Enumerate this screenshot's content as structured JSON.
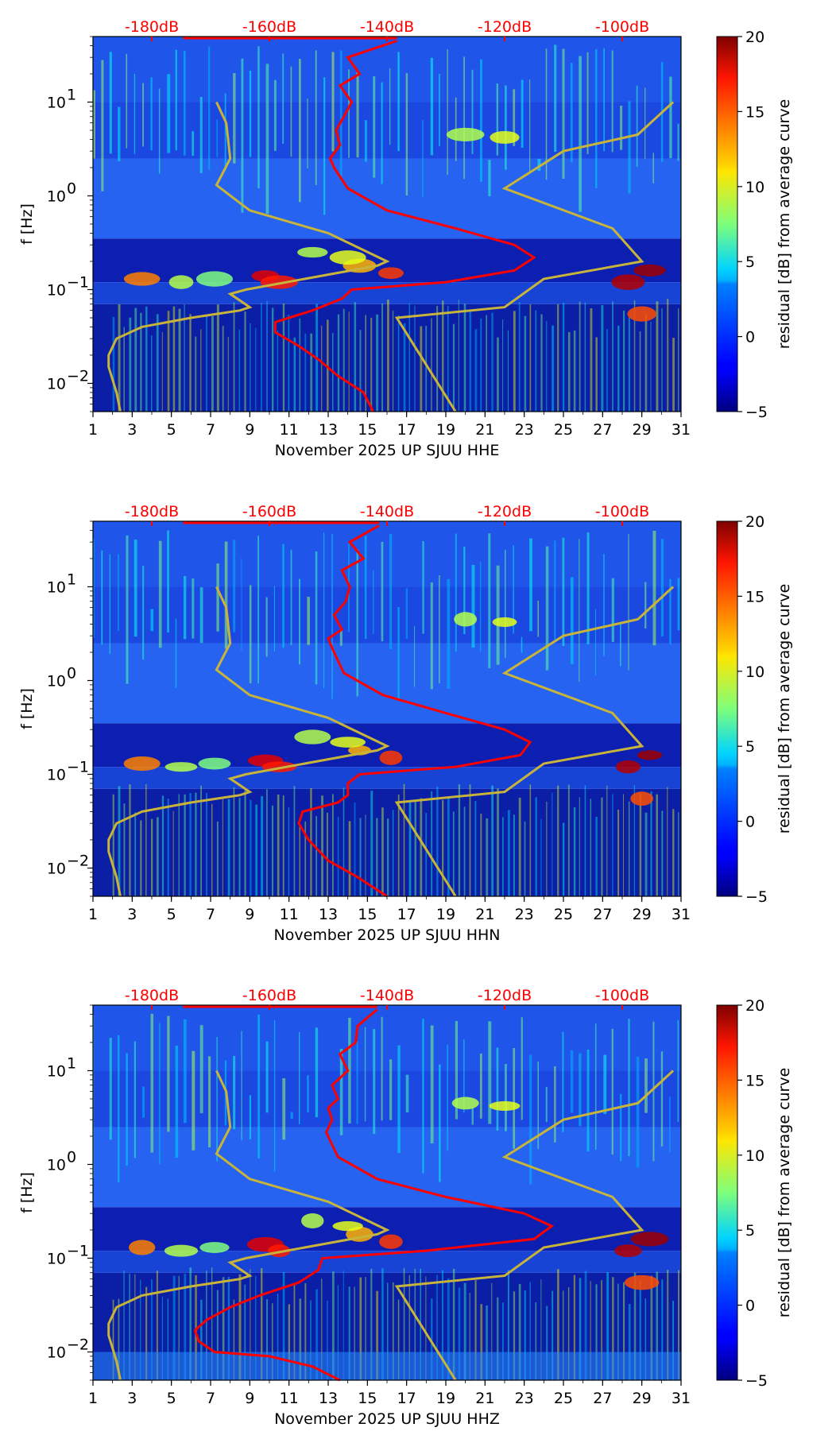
{
  "chart_data": [
    {
      "type": "heatmap",
      "title": "",
      "xlabel": "November 2025 UP SJUU  HHE",
      "ylabel": "f [Hz]",
      "xlim": [
        1,
        31
      ],
      "ylim": [
        0.005,
        50
      ],
      "yscale": "log",
      "x_ticks": [
        "1",
        "3",
        "5",
        "7",
        "9",
        "11",
        "13",
        "15",
        "17",
        "19",
        "21",
        "23",
        "25",
        "27",
        "29",
        "31"
      ],
      "y_ticks": [
        {
          "base": "10",
          "exp": "1",
          "value": 10
        },
        {
          "base": "10",
          "exp": "0",
          "value": 1
        },
        {
          "base": "10",
          "exp": "−1",
          "value": 0.1
        },
        {
          "base": "10",
          "exp": "−2",
          "value": 0.01
        }
      ],
      "top_axis_labels": [
        "-180dB",
        "-160dB",
        "-140dB",
        "-120dB",
        "-100dB"
      ],
      "top_axis_days": [
        4,
        10,
        16,
        22,
        28
      ],
      "colorbar": {
        "label": "residual [dB] from average curve",
        "range": [
          -5,
          20
        ],
        "ticks": [
          "20",
          "15",
          "10",
          "5",
          "0",
          "−5"
        ],
        "colormap": "jet"
      },
      "series": [
        {
          "name": "PSD average (red)",
          "color": "#ff0000",
          "points": [
            [
              15.3,
              0.005
            ],
            [
              14.8,
              0.008
            ],
            [
              13.5,
              0.012
            ],
            [
              12.5,
              0.018
            ],
            [
              11.5,
              0.025
            ],
            [
              10.3,
              0.035
            ],
            [
              10.3,
              0.045
            ],
            [
              12.2,
              0.06
            ],
            [
              13.7,
              0.08
            ],
            [
              14.2,
              0.1
            ],
            [
              19.0,
              0.12
            ],
            [
              22.5,
              0.16
            ],
            [
              23.5,
              0.22
            ],
            [
              22.5,
              0.3
            ],
            [
              19.5,
              0.45
            ],
            [
              16.0,
              0.7
            ],
            [
              14.0,
              1.2
            ],
            [
              13.3,
              2.0
            ],
            [
              13.1,
              2.5
            ],
            [
              13.6,
              3.5
            ],
            [
              13.4,
              5
            ],
            [
              13.8,
              7
            ],
            [
              14.2,
              10
            ],
            [
              13.6,
              15
            ],
            [
              14.6,
              20
            ],
            [
              14.0,
              30
            ],
            [
              16.5,
              45
            ]
          ]
        },
        {
          "name": "Noise model bounds (gold)",
          "color": "#c8b43a",
          "left_curve": [
            [
              2.4,
              0.005
            ],
            [
              2.2,
              0.008
            ],
            [
              1.8,
              0.015
            ],
            [
              1.8,
              0.02
            ],
            [
              2.2,
              0.03
            ],
            [
              3.5,
              0.04
            ],
            [
              6.0,
              0.05
            ],
            [
              8.5,
              0.06
            ],
            [
              9.0,
              0.065
            ],
            [
              8.0,
              0.09
            ],
            [
              8.8,
              0.1
            ],
            [
              15.5,
              0.18
            ],
            [
              16.0,
              0.2
            ],
            [
              13.0,
              0.4
            ],
            [
              9.0,
              0.7
            ],
            [
              7.3,
              1.3
            ],
            [
              8.0,
              2.5
            ],
            [
              7.8,
              6
            ],
            [
              7.3,
              10
            ]
          ],
          "right_curve": [
            [
              19.5,
              0.005
            ],
            [
              16.5,
              0.05
            ],
            [
              22.0,
              0.065
            ],
            [
              24.0,
              0.13
            ],
            [
              29.0,
              0.2
            ],
            [
              27.5,
              0.45
            ],
            [
              22.0,
              1.2
            ],
            [
              25.0,
              3
            ],
            [
              28.8,
              4.5
            ],
            [
              30.6,
              10
            ]
          ]
        }
      ]
    },
    {
      "type": "heatmap",
      "title": "",
      "xlabel": "November 2025 UP SJUU  HHN",
      "ylabel": "f [Hz]",
      "xlim": [
        1,
        31
      ],
      "ylim": [
        0.005,
        50
      ],
      "yscale": "log",
      "x_ticks": [
        "1",
        "3",
        "5",
        "7",
        "9",
        "11",
        "13",
        "15",
        "17",
        "19",
        "21",
        "23",
        "25",
        "27",
        "29",
        "31"
      ],
      "y_ticks": [
        {
          "base": "10",
          "exp": "1",
          "value": 10
        },
        {
          "base": "10",
          "exp": "0",
          "value": 1
        },
        {
          "base": "10",
          "exp": "−1",
          "value": 0.1
        },
        {
          "base": "10",
          "exp": "−2",
          "value": 0.01
        }
      ],
      "top_axis_labels": [
        "-180dB",
        "-160dB",
        "-140dB",
        "-120dB",
        "-100dB"
      ],
      "top_axis_days": [
        4,
        10,
        16,
        22,
        28
      ],
      "colorbar": {
        "label": "residual [dB] from average curve",
        "range": [
          -5,
          20
        ],
        "ticks": [
          "20",
          "15",
          "10",
          "5",
          "0",
          "−5"
        ],
        "colormap": "jet"
      },
      "series": [
        {
          "name": "PSD average (red)",
          "color": "#ff0000",
          "points": [
            [
              16.0,
              0.005
            ],
            [
              14.5,
              0.008
            ],
            [
              13.0,
              0.012
            ],
            [
              12.0,
              0.02
            ],
            [
              11.5,
              0.03
            ],
            [
              11.7,
              0.04
            ],
            [
              13.5,
              0.05
            ],
            [
              14.0,
              0.06
            ],
            [
              14.0,
              0.08
            ],
            [
              14.6,
              0.1
            ],
            [
              19.5,
              0.12
            ],
            [
              22.8,
              0.16
            ],
            [
              23.3,
              0.22
            ],
            [
              22.0,
              0.3
            ],
            [
              19.0,
              0.45
            ],
            [
              15.8,
              0.7
            ],
            [
              13.8,
              1.2
            ],
            [
              13.3,
              2.0
            ],
            [
              13.0,
              2.8
            ],
            [
              13.7,
              3.5
            ],
            [
              13.3,
              5
            ],
            [
              13.9,
              7
            ],
            [
              14.1,
              10
            ],
            [
              13.7,
              15
            ],
            [
              14.8,
              20
            ],
            [
              14.1,
              30
            ],
            [
              15.6,
              45
            ]
          ]
        },
        {
          "name": "Noise model bounds (gold)",
          "color": "#c8b43a",
          "left_curve": [
            [
              2.4,
              0.005
            ],
            [
              2.2,
              0.008
            ],
            [
              1.8,
              0.015
            ],
            [
              1.8,
              0.02
            ],
            [
              2.2,
              0.03
            ],
            [
              3.5,
              0.04
            ],
            [
              6.0,
              0.05
            ],
            [
              8.5,
              0.06
            ],
            [
              9.0,
              0.065
            ],
            [
              8.0,
              0.09
            ],
            [
              8.8,
              0.1
            ],
            [
              15.5,
              0.18
            ],
            [
              16.0,
              0.2
            ],
            [
              13.0,
              0.4
            ],
            [
              9.0,
              0.7
            ],
            [
              7.3,
              1.3
            ],
            [
              8.0,
              2.5
            ],
            [
              7.8,
              6
            ],
            [
              7.3,
              10
            ]
          ],
          "right_curve": [
            [
              19.5,
              0.005
            ],
            [
              16.5,
              0.05
            ],
            [
              22.0,
              0.065
            ],
            [
              24.0,
              0.13
            ],
            [
              29.0,
              0.2
            ],
            [
              27.5,
              0.45
            ],
            [
              22.0,
              1.2
            ],
            [
              25.0,
              3
            ],
            [
              28.8,
              4.5
            ],
            [
              30.6,
              10
            ]
          ]
        }
      ]
    },
    {
      "type": "heatmap",
      "title": "",
      "xlabel": "November 2025 UP SJUU  HHZ",
      "ylabel": "f [Hz]",
      "xlim": [
        1,
        31
      ],
      "ylim": [
        0.005,
        50
      ],
      "yscale": "log",
      "x_ticks": [
        "1",
        "3",
        "5",
        "7",
        "9",
        "11",
        "13",
        "15",
        "17",
        "19",
        "21",
        "23",
        "25",
        "27",
        "29",
        "31"
      ],
      "y_ticks": [
        {
          "base": "10",
          "exp": "1",
          "value": 10
        },
        {
          "base": "10",
          "exp": "0",
          "value": 1
        },
        {
          "base": "10",
          "exp": "−1",
          "value": 0.1
        },
        {
          "base": "10",
          "exp": "−2",
          "value": 0.01
        }
      ],
      "top_axis_labels": [
        "-180dB",
        "-160dB",
        "-140dB",
        "-120dB",
        "-100dB"
      ],
      "top_axis_days": [
        4,
        10,
        16,
        22,
        28
      ],
      "colorbar": {
        "label": "residual [dB] from average curve",
        "range": [
          -5,
          20
        ],
        "ticks": [
          "20",
          "15",
          "10",
          "5",
          "0",
          "−5"
        ],
        "colormap": "jet"
      },
      "series": [
        {
          "name": "PSD average (red)",
          "color": "#ff0000",
          "points": [
            [
              13.6,
              0.005
            ],
            [
              12.2,
              0.007
            ],
            [
              10.0,
              0.009
            ],
            [
              7.2,
              0.01
            ],
            [
              6.4,
              0.013
            ],
            [
              6.2,
              0.017
            ],
            [
              6.8,
              0.022
            ],
            [
              8.0,
              0.03
            ],
            [
              9.5,
              0.04
            ],
            [
              11.5,
              0.055
            ],
            [
              12.5,
              0.075
            ],
            [
              12.7,
              0.1
            ],
            [
              18.0,
              0.12
            ],
            [
              23.5,
              0.16
            ],
            [
              24.4,
              0.22
            ],
            [
              23.0,
              0.3
            ],
            [
              19.0,
              0.45
            ],
            [
              15.5,
              0.7
            ],
            [
              13.5,
              1.2
            ],
            [
              12.9,
              2.2
            ],
            [
              13.2,
              3
            ],
            [
              13.0,
              4
            ],
            [
              13.5,
              5
            ],
            [
              13.2,
              7
            ],
            [
              14.0,
              10
            ],
            [
              13.6,
              15
            ],
            [
              14.4,
              20
            ],
            [
              14.5,
              30
            ],
            [
              15.5,
              45
            ]
          ]
        },
        {
          "name": "Noise model bounds (gold)",
          "color": "#c8b43a",
          "left_curve": [
            [
              2.4,
              0.005
            ],
            [
              2.2,
              0.008
            ],
            [
              1.8,
              0.015
            ],
            [
              1.8,
              0.02
            ],
            [
              2.2,
              0.03
            ],
            [
              3.5,
              0.04
            ],
            [
              6.0,
              0.05
            ],
            [
              8.5,
              0.06
            ],
            [
              9.0,
              0.065
            ],
            [
              8.0,
              0.09
            ],
            [
              8.8,
              0.1
            ],
            [
              15.5,
              0.18
            ],
            [
              16.0,
              0.2
            ],
            [
              13.0,
              0.4
            ],
            [
              9.0,
              0.7
            ],
            [
              7.3,
              1.3
            ],
            [
              8.0,
              2.5
            ],
            [
              7.8,
              6
            ],
            [
              7.3,
              10
            ]
          ],
          "right_curve": [
            [
              19.5,
              0.005
            ],
            [
              16.5,
              0.05
            ],
            [
              22.0,
              0.065
            ],
            [
              24.0,
              0.13
            ],
            [
              29.0,
              0.2
            ],
            [
              27.5,
              0.45
            ],
            [
              22.0,
              1.2
            ],
            [
              25.0,
              3
            ],
            [
              28.8,
              4.5
            ],
            [
              30.6,
              10
            ]
          ]
        }
      ]
    }
  ]
}
